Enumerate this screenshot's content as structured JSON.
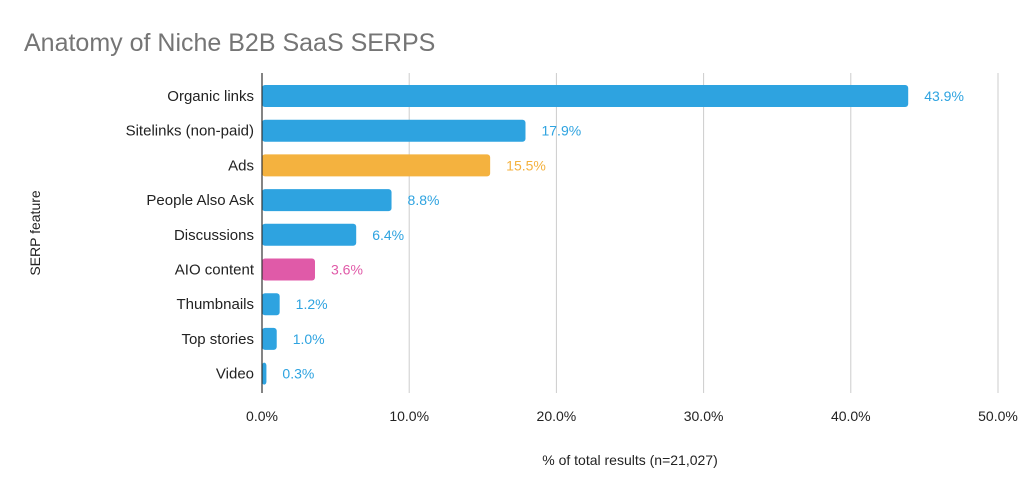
{
  "chart_data": {
    "type": "bar",
    "orientation": "horizontal",
    "title": "Anatomy of Niche B2B SaaS SERPS",
    "xlabel": "% of total results (n=21,027)",
    "ylabel": "SERP feature",
    "xlim": [
      0,
      50
    ],
    "x_ticks": [
      "0.0%",
      "10.0%",
      "20.0%",
      "30.0%",
      "40.0%",
      "50.0%"
    ],
    "x_tick_values": [
      0,
      10,
      20,
      30,
      40,
      50
    ],
    "grid": true,
    "categories": [
      "Organic links",
      "Sitelinks (non-paid)",
      "Ads",
      "People Also Ask",
      "Discussions",
      "AIO content",
      "Thumbnails",
      "Top stories",
      "Video"
    ],
    "values": [
      43.9,
      17.9,
      15.5,
      8.8,
      6.4,
      3.6,
      1.2,
      1.0,
      0.3
    ],
    "data_labels": [
      "43.9%",
      "17.9%",
      "15.5%",
      "8.8%",
      "6.4%",
      "3.6%",
      "1.2%",
      "1.0%",
      "0.3%"
    ],
    "colors": [
      "#2ea3e0",
      "#2ea3e0",
      "#f4b23f",
      "#2ea3e0",
      "#2ea3e0",
      "#e05aa8",
      "#2ea3e0",
      "#2ea3e0",
      "#2ea3e0"
    ]
  }
}
